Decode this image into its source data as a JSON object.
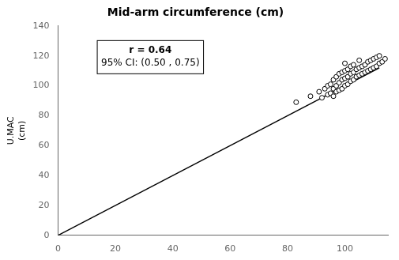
{
  "chart_data": {
    "type": "scatter",
    "title": "Mid-arm circumference (cm)",
    "ylabel": [
      "U.MAC",
      "(cm)"
    ],
    "annotations": [
      "r = 0.64",
      "95% CI: (0.50 , 0.75)"
    ],
    "xlim": [
      0,
      115
    ],
    "ylim": [
      0,
      140
    ],
    "xticks": [
      0,
      20,
      40,
      60,
      80,
      100
    ],
    "yticks": [
      0,
      20,
      40,
      60,
      80,
      100,
      120,
      140
    ],
    "grid": false,
    "series": [
      {
        "type": "scatter",
        "marker": "circle",
        "color": "black",
        "x": [
          83,
          88,
          91,
          92,
          93,
          94,
          94,
          95,
          95,
          96,
          96,
          96,
          97,
          97,
          97,
          98,
          98,
          98,
          99,
          99,
          99,
          100,
          100,
          100,
          100,
          101,
          101,
          101,
          102,
          102,
          102,
          103,
          103,
          103,
          104,
          104,
          105,
          105,
          105,
          106,
          106,
          107,
          107,
          108,
          108,
          109,
          109,
          110,
          110,
          111,
          111,
          112,
          112,
          113,
          114
        ],
        "values": [
          89,
          93,
          96,
          92,
          98,
          94,
          100,
          95,
          101,
          93,
          98,
          104,
          96,
          100,
          106,
          97,
          102,
          108,
          98,
          104,
          109,
          100,
          105,
          110,
          115,
          101,
          106,
          111,
          103,
          108,
          113,
          104,
          109,
          114,
          106,
          111,
          107,
          112,
          117,
          108,
          113,
          109,
          114,
          110,
          116,
          111,
          117,
          112,
          118,
          113,
          119,
          115,
          120,
          116,
          118
        ]
      },
      {
        "type": "line",
        "line_style": "solid",
        "color": "black",
        "x": [
          0,
          112
        ],
        "values": [
          0,
          112
        ]
      }
    ]
  }
}
